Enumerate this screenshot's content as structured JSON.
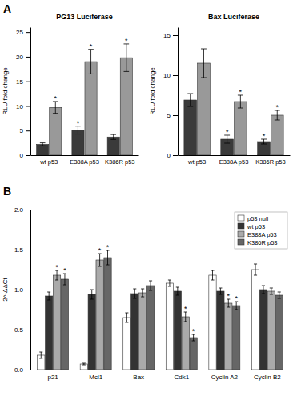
{
  "chart_data": [
    {
      "type": "bar",
      "title": "PG13 Luciferase",
      "annotations": [
        "A"
      ],
      "ylabel": "RLU fold change",
      "categories": [
        "wt p53",
        "E388A p53",
        "K386R p53"
      ],
      "series": [
        {
          "color": "#3a3a3a",
          "values": [
            2.2,
            5.1,
            3.7
          ],
          "errors": [
            0.3,
            0.8,
            0.5
          ],
          "stars": [
            null,
            "*",
            null
          ]
        },
        {
          "color": "#999999",
          "values": [
            9.7,
            19.0,
            19.8
          ],
          "errors": [
            1.2,
            2.5,
            2.8
          ],
          "stars": [
            "*",
            "*",
            "*"
          ]
        }
      ],
      "ylim": [
        0,
        26
      ],
      "yticks": [
        0,
        5,
        10,
        15,
        20,
        25
      ]
    },
    {
      "type": "bar",
      "title": "Bax Luciferase",
      "ylabel": "RLU fold change",
      "categories": [
        "wt p53",
        "E388A p53",
        "K386R p53"
      ],
      "series": [
        {
          "color": "#3a3a3a",
          "values": [
            6.9,
            2.0,
            1.7
          ],
          "errors": [
            0.8,
            0.5,
            0.3
          ],
          "stars": [
            null,
            "*",
            "*"
          ]
        },
        {
          "color": "#999999",
          "values": [
            11.5,
            6.7,
            5.0
          ],
          "errors": [
            1.8,
            0.8,
            0.6
          ],
          "stars": [
            null,
            "*",
            "*"
          ]
        }
      ],
      "ylim": [
        0,
        16
      ],
      "yticks": [
        0,
        5,
        10,
        15
      ]
    },
    {
      "type": "bar",
      "annotations": [
        "B"
      ],
      "ylabel": "2^-ΔΔCt",
      "categories": [
        "p21",
        "Mcl1",
        "Bax",
        "Cdk1",
        "Cyclin A2",
        "Cyclin B2"
      ],
      "series": [
        {
          "name": "p53 null",
          "color": "#ffffff",
          "values": [
            0.18,
            0.07,
            0.65,
            1.08,
            1.18,
            1.25
          ],
          "errors": [
            0.04,
            0.01,
            0.06,
            0.04,
            0.06,
            0.07
          ]
        },
        {
          "name": "wt p53",
          "color": "#333333",
          "values": [
            0.92,
            0.94,
            0.95,
            0.98,
            0.98,
            1.0
          ],
          "errors": [
            0.05,
            0.06,
            0.06,
            0.05,
            0.04,
            0.05
          ]
        },
        {
          "name": "E388A p53",
          "color": "#aaaaaa",
          "values": [
            1.18,
            1.37,
            0.96,
            0.66,
            0.83,
            0.98
          ],
          "errors": [
            0.06,
            0.08,
            0.05,
            0.06,
            0.05,
            0.04
          ],
          "stars": [
            "*",
            "*",
            null,
            "*",
            "*",
            null
          ]
        },
        {
          "name": "K386R p53",
          "color": "#666666",
          "values": [
            1.13,
            1.4,
            1.05,
            0.4,
            0.8,
            0.93
          ],
          "errors": [
            0.07,
            0.09,
            0.06,
            0.04,
            0.05,
            0.04
          ],
          "stars": [
            "*",
            "*",
            null,
            "*",
            "*",
            null
          ]
        }
      ],
      "ylim": [
        0.0,
        2.0
      ],
      "yticks": [
        {
          "value": 0.0,
          "label": "0.0"
        },
        0.5,
        {
          "value": 1.0,
          "label": "1.0"
        },
        1.5,
        {
          "value": 2.0,
          "label": "2.0"
        }
      ],
      "legend": "upper right"
    }
  ]
}
